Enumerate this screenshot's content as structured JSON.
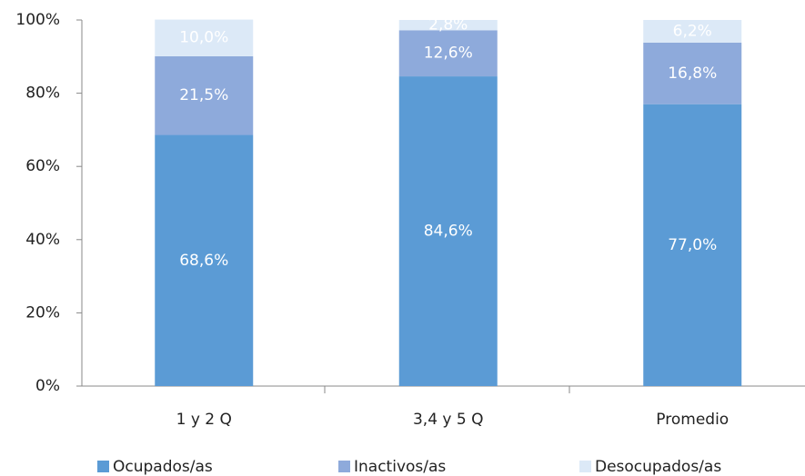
{
  "chart_data": {
    "type": "stacked_bar",
    "categories": [
      "1 y 2 Q",
      "3,4 y 5 Q",
      "Promedio"
    ],
    "series": [
      {
        "name": "Ocupados/as",
        "color": "#5b9bd5",
        "values": [
          68.6,
          84.6,
          77.0
        ],
        "value_labels": [
          "68,6%",
          "84,6%",
          "77,0%"
        ]
      },
      {
        "name": "Inactivos/as",
        "color": "#8eaadb",
        "values": [
          21.5,
          12.6,
          16.8
        ],
        "value_labels": [
          "21,5%",
          "12,6%",
          "16,8%"
        ]
      },
      {
        "name": "Desocupados/as",
        "color": "#dce9f7",
        "values": [
          10.0,
          2.8,
          6.2
        ],
        "value_labels": [
          "10,0%",
          "2,8%",
          "6,2%"
        ]
      }
    ],
    "ylim": [
      0,
      100
    ],
    "yticks": [
      {
        "value": 0,
        "label": "0%"
      },
      {
        "value": 20,
        "label": "20%"
      },
      {
        "value": 40,
        "label": "40%"
      },
      {
        "value": 60,
        "label": "60%"
      },
      {
        "value": 80,
        "label": "80%"
      },
      {
        "value": 100,
        "label": "100%"
      }
    ],
    "legend": "bottom"
  }
}
